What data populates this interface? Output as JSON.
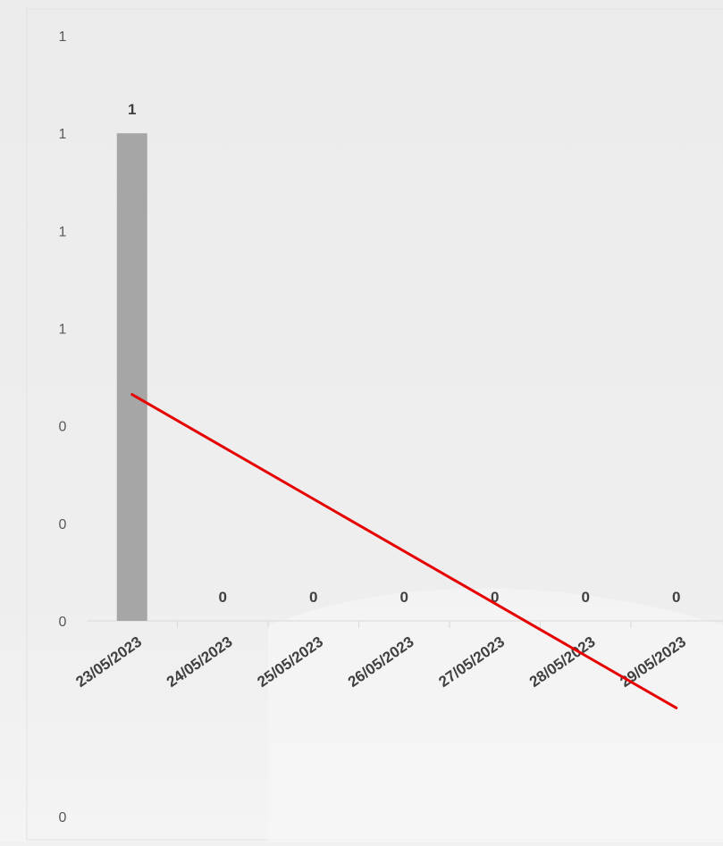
{
  "chart_data": {
    "type": "bar",
    "categories": [
      "23/05/2023",
      "24/05/2023",
      "25/05/2023",
      "26/05/2023",
      "27/05/2023",
      "28/05/2023",
      "29/05/2023"
    ],
    "series": [
      {
        "values": [
          1,
          0,
          0,
          0,
          0,
          0,
          0
        ],
        "color": "#a6a6a6"
      }
    ],
    "data_labels": [
      "1",
      "0",
      "0",
      "0",
      "0",
      "0",
      "0"
    ],
    "trendline": {
      "type": "linear",
      "color": "#e60000"
    },
    "y_tick_labels": [
      "1",
      "1",
      "1",
      "1",
      "0",
      "0",
      "0"
    ],
    "extra_label": "0",
    "ylim": [
      0,
      1.2
    ],
    "grid": false,
    "legend": "none",
    "title": "",
    "xlabel": "",
    "ylabel": ""
  }
}
